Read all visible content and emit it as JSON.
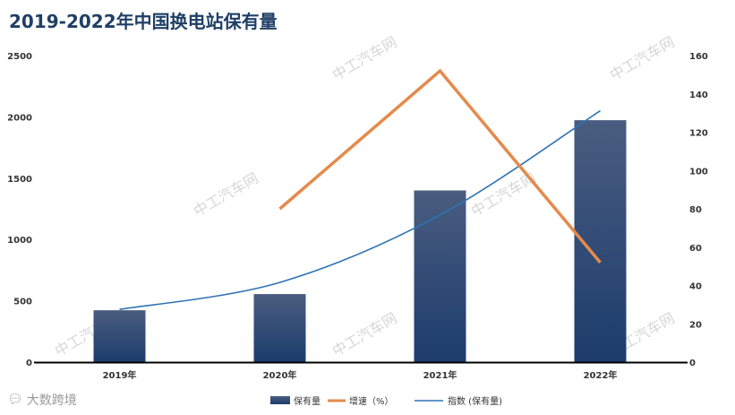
{
  "title": "2019-2022年中国换电站保有量",
  "brand": {
    "icon": "chat-bubble-icon",
    "text": "大数跨境"
  },
  "watermark": "中工汽车网",
  "colors": {
    "bar_top": "#4a5d80",
    "bar_bottom": "#1c3c6c",
    "growth_line": "#e58a4c",
    "index_line": "#2f74b5",
    "axis": "#000000",
    "title": "#1f3f66"
  },
  "chart_data": {
    "type": "bar",
    "categories": [
      "2019年",
      "2020年",
      "2021年",
      "2022年"
    ],
    "series": [
      {
        "name": "保有量",
        "type": "bar",
        "axis": "left",
        "values": [
          423,
          555,
          1400,
          1973
        ]
      },
      {
        "name": "增速（%）",
        "type": "line",
        "axis": "right",
        "values": [
          null,
          80,
          152,
          52
        ]
      },
      {
        "name": "指数 (保有量)",
        "type": "trendline",
        "axis": "left",
        "values": [
          430,
          650,
          1200,
          2050
        ]
      }
    ],
    "y_left": {
      "range": [
        0,
        2500
      ],
      "ticks": [
        0,
        500,
        1000,
        1500,
        2000,
        2500
      ]
    },
    "y_right": {
      "range": [
        0,
        160
      ],
      "ticks": [
        0,
        20,
        40,
        60,
        80,
        100,
        120,
        140,
        160
      ]
    },
    "legend": {
      "position": "bottom",
      "items": [
        "保有量",
        "增速（%）",
        "指数 (保有量)"
      ]
    },
    "grid": false
  }
}
